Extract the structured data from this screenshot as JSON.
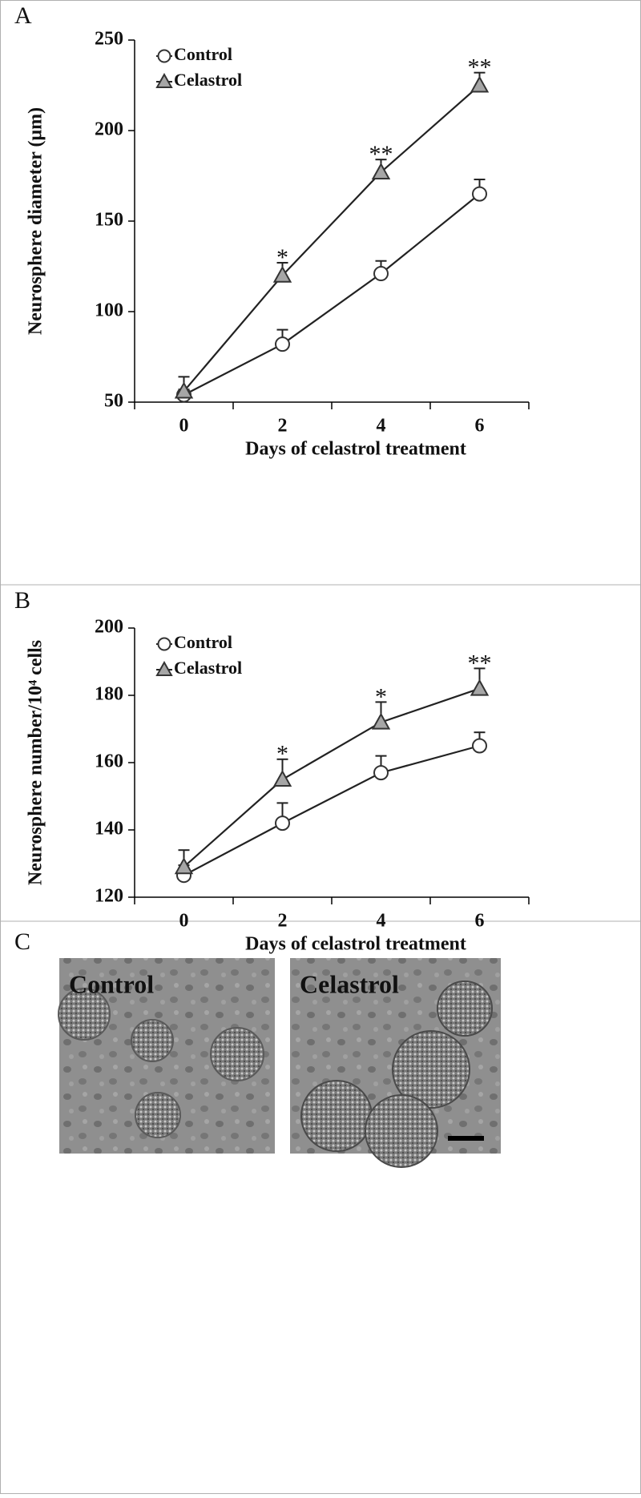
{
  "chart_data": [
    {
      "type": "line",
      "panel_label": "A",
      "xlabel": "Days of celastrol treatment",
      "ylabel": "Neurosphere diameter (μm)",
      "x": [
        0,
        2,
        4,
        6
      ],
      "xlim": [
        -1,
        7
      ],
      "xticks": [
        0,
        2,
        4,
        6
      ],
      "ylim": [
        50,
        250
      ],
      "yticks": [
        50,
        100,
        150,
        200,
        250
      ],
      "legend": "upper left",
      "series": [
        {
          "name": "Control",
          "marker": "circle",
          "color": "#ffffff",
          "values": [
            54,
            82,
            121,
            165
          ],
          "errors": [
            3,
            8,
            7,
            8
          ]
        },
        {
          "name": "Celastrol",
          "marker": "triangle",
          "color": "#a6a6a6",
          "values": [
            56,
            120,
            177,
            225
          ],
          "errors": [
            8,
            7,
            7,
            7
          ]
        }
      ],
      "annotations": [
        {
          "x": 2,
          "text": "*"
        },
        {
          "x": 4,
          "text": "**"
        },
        {
          "x": 6,
          "text": "**"
        }
      ]
    },
    {
      "type": "line",
      "panel_label": "B",
      "xlabel": "Days of celastrol treatment",
      "ylabel": "Neurosphere number/10⁴ cells",
      "x": [
        0,
        2,
        4,
        6
      ],
      "xlim": [
        -1,
        7
      ],
      "xticks": [
        0,
        2,
        4,
        6
      ],
      "ylim": [
        120,
        200
      ],
      "yticks": [
        120,
        140,
        160,
        180,
        200
      ],
      "legend": "upper left",
      "series": [
        {
          "name": "Control",
          "marker": "circle",
          "color": "#ffffff",
          "values": [
            126.5,
            142,
            157,
            165
          ],
          "errors": [
            3,
            6,
            5,
            4
          ]
        },
        {
          "name": "Celastrol",
          "marker": "triangle",
          "color": "#a6a6a6",
          "values": [
            129,
            155,
            172,
            182
          ],
          "errors": [
            5,
            6,
            6,
            6
          ]
        }
      ],
      "annotations": [
        {
          "x": 2,
          "text": "*"
        },
        {
          "x": 4,
          "text": "*"
        },
        {
          "x": 6,
          "text": "**"
        }
      ]
    }
  ],
  "images": {
    "panel_label": "C",
    "captions": [
      "Control",
      "Celastrol"
    ]
  }
}
